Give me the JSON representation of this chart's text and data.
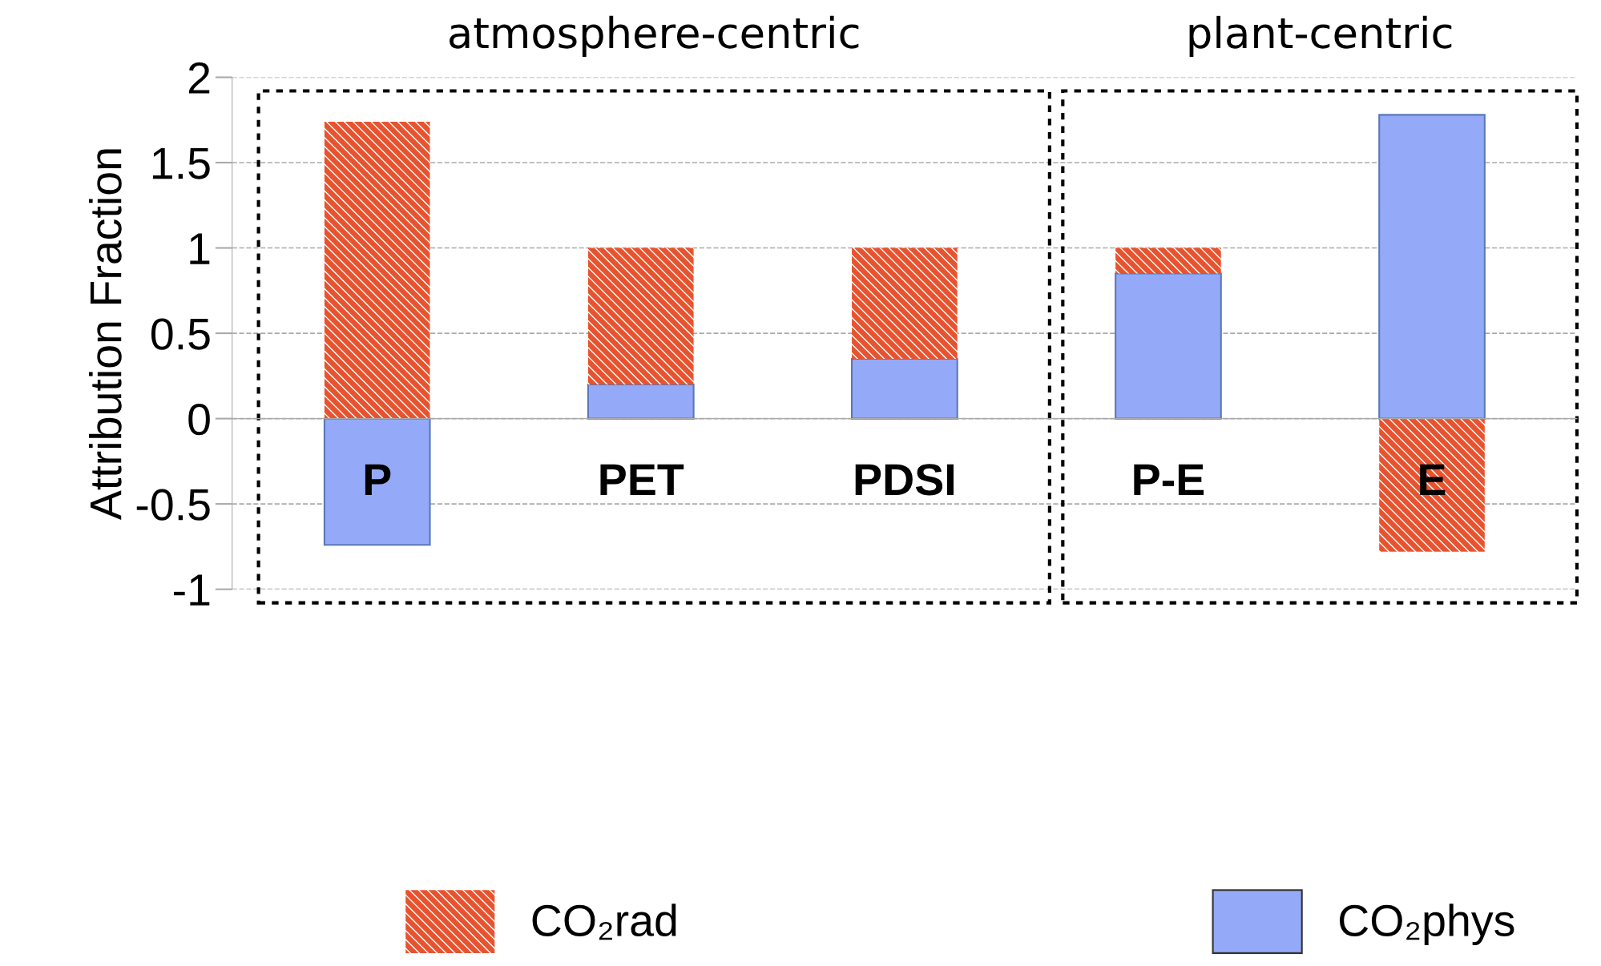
{
  "chart_data": {
    "type": "bar",
    "stacked": true,
    "ylabel": "Attribution Fraction",
    "categories": [
      "P",
      "PET",
      "PDSI",
      "P-E",
      "E"
    ],
    "series": [
      {
        "name": "CO₂phys",
        "color": "#94aaf8",
        "values": [
          -0.74,
          0.2,
          0.35,
          0.85,
          1.78
        ]
      },
      {
        "name": "CO₂rad",
        "color": "#e8532f",
        "values": [
          1.74,
          0.8,
          0.65,
          0.15,
          -0.78
        ]
      }
    ],
    "ylim": [
      -1,
      2
    ],
    "yticks": [
      {
        "value": -1,
        "label": "-1"
      },
      {
        "value": -0.5,
        "label": "-0.5"
      },
      0,
      0.5,
      1,
      1.5,
      2
    ],
    "grid": "y",
    "legend": "bottom",
    "annotations": [
      "atmosphere-centric",
      "plant-centric"
    ]
  }
}
